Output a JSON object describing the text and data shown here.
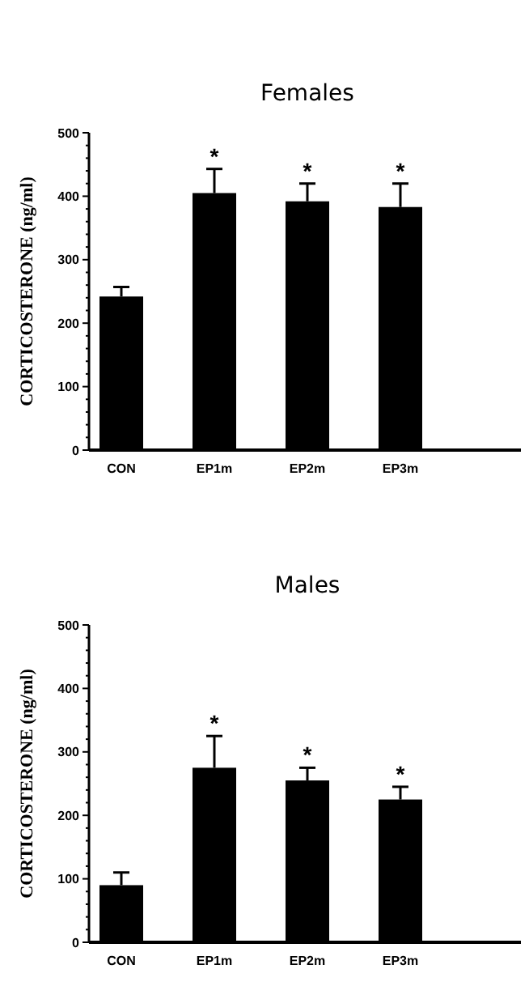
{
  "chart_data": [
    {
      "type": "bar",
      "title": "Females",
      "ylabel": "CORTICOSTERONE (ng/ml)",
      "categories": [
        "CON",
        "EP1m",
        "EP2m",
        "EP3m"
      ],
      "values": [
        242,
        405,
        392,
        383
      ],
      "color": "#000000",
      "errors": [
        [
          242,
          257
        ],
        [
          405,
          443
        ],
        [
          392,
          420
        ],
        [
          383,
          420
        ]
      ],
      "ylim": [
        0,
        500
      ],
      "yticks": [
        0,
        {
          "value": 20,
          "label": null
        },
        {
          "value": 40,
          "label": null
        },
        {
          "value": 60,
          "label": null
        },
        {
          "value": 80,
          "label": null
        },
        100,
        {
          "value": 120,
          "label": null
        },
        {
          "value": 140,
          "label": null
        },
        {
          "value": 160,
          "label": null
        },
        {
          "value": 180,
          "label": null
        },
        200,
        {
          "value": 220,
          "label": null
        },
        {
          "value": 240,
          "label": null
        },
        {
          "value": 260,
          "label": null
        },
        {
          "value": 280,
          "label": null
        },
        300,
        {
          "value": 320,
          "label": null
        },
        {
          "value": 340,
          "label": null
        },
        {
          "value": 360,
          "label": null
        },
        {
          "value": 380,
          "label": null
        },
        400,
        {
          "value": 420,
          "label": null
        },
        {
          "value": 440,
          "label": null
        },
        {
          "value": 460,
          "label": null
        },
        {
          "value": 480,
          "label": null
        },
        500
      ],
      "annotations": [
        {
          "text": "*",
          "x": "EP1m",
          "y": 443
        },
        {
          "text": "*",
          "x": "EP2m",
          "y": 420
        },
        {
          "text": "*",
          "x": "EP3m",
          "y": 420
        }
      ]
    },
    {
      "type": "bar",
      "title": "Males",
      "ylabel": "CORTICOSTERONE (ng/ml)",
      "categories": [
        "CON",
        "EP1m",
        "EP2m",
        "EP3m"
      ],
      "values": [
        90,
        275,
        255,
        225
      ],
      "color": "#000000",
      "errors": [
        [
          90,
          110
        ],
        [
          275,
          325
        ],
        [
          255,
          275
        ],
        [
          225,
          245
        ]
      ],
      "ylim": [
        0,
        500
      ],
      "yticks": [
        0,
        {
          "value": 20,
          "label": null
        },
        {
          "value": 40,
          "label": null
        },
        {
          "value": 60,
          "label": null
        },
        {
          "value": 80,
          "label": null
        },
        100,
        {
          "value": 120,
          "label": null
        },
        {
          "value": 140,
          "label": null
        },
        {
          "value": 160,
          "label": null
        },
        {
          "value": 180,
          "label": null
        },
        200,
        {
          "value": 220,
          "label": null
        },
        {
          "value": 240,
          "label": null
        },
        {
          "value": 260,
          "label": null
        },
        {
          "value": 280,
          "label": null
        },
        300,
        {
          "value": 320,
          "label": null
        },
        {
          "value": 340,
          "label": null
        },
        {
          "value": 360,
          "label": null
        },
        {
          "value": 380,
          "label": null
        },
        400,
        {
          "value": 420,
          "label": null
        },
        {
          "value": 440,
          "label": null
        },
        {
          "value": 460,
          "label": null
        },
        {
          "value": 480,
          "label": null
        },
        500
      ],
      "annotations": [
        {
          "text": "*",
          "x": "EP1m",
          "y": 325
        },
        {
          "text": "*",
          "x": "EP2m",
          "y": 275
        },
        {
          "text": "*",
          "x": "EP3m",
          "y": 245
        }
      ]
    }
  ]
}
